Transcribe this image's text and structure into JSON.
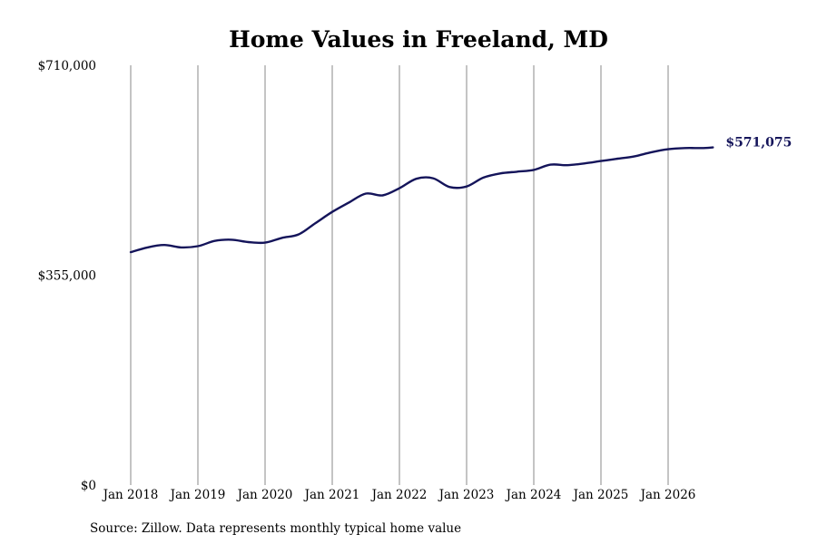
{
  "chart_data": {
    "type": "line",
    "title": "Home Values in Freeland, MD",
    "xlabel": "",
    "ylabel": "",
    "ylim": [
      0,
      710000
    ],
    "yticks": [
      {
        "value": 0,
        "label": "$0"
      },
      {
        "value": 355000,
        "label": "$355,000"
      },
      {
        "value": 710000,
        "label": "$710,000"
      }
    ],
    "xticks": [
      {
        "value": "2018-01",
        "label": "Jan 2018"
      },
      {
        "value": "2019-01",
        "label": "Jan 2019"
      },
      {
        "value": "2020-01",
        "label": "Jan 2020"
      },
      {
        "value": "2021-01",
        "label": "Jan 2021"
      },
      {
        "value": "2022-01",
        "label": "Jan 2022"
      },
      {
        "value": "2023-01",
        "label": "Jan 2023"
      },
      {
        "value": "2024-01",
        "label": "Jan 2024"
      },
      {
        "value": "2025-01",
        "label": "Jan 2025"
      },
      {
        "value": "2026-01",
        "label": "Jan 2026"
      }
    ],
    "xlim": [
      "2018-01",
      "2026-12"
    ],
    "vertical_grid": true,
    "horizontal_grid": false,
    "line_color": "#14145a",
    "series": [
      {
        "points": [
          [
            "2018-01",
            394000
          ],
          [
            "2018-04",
            402000
          ],
          [
            "2018-07",
            406000
          ],
          [
            "2018-10",
            402000
          ],
          [
            "2019-01",
            404000
          ],
          [
            "2019-04",
            413000
          ],
          [
            "2019-07",
            415000
          ],
          [
            "2019-10",
            411000
          ],
          [
            "2020-01",
            410000
          ],
          [
            "2020-04",
            418000
          ],
          [
            "2020-07",
            424000
          ],
          [
            "2020-10",
            443000
          ],
          [
            "2021-01",
            462000
          ],
          [
            "2021-04",
            478000
          ],
          [
            "2021-07",
            493000
          ],
          [
            "2021-10",
            490000
          ],
          [
            "2022-01",
            502000
          ],
          [
            "2022-04",
            518000
          ],
          [
            "2022-07",
            519000
          ],
          [
            "2022-10",
            504000
          ],
          [
            "2023-01",
            505000
          ],
          [
            "2023-04",
            520000
          ],
          [
            "2023-07",
            527000
          ],
          [
            "2023-10",
            530000
          ],
          [
            "2024-01",
            533000
          ],
          [
            "2024-04",
            542000
          ],
          [
            "2024-07",
            541000
          ],
          [
            "2024-10",
            544000
          ],
          [
            "2025-01",
            548000
          ],
          [
            "2025-04",
            552000
          ],
          [
            "2025-07",
            556000
          ],
          [
            "2025-10",
            563000
          ],
          [
            "2026-01",
            568000
          ],
          [
            "2026-04",
            570000
          ],
          [
            "2026-07",
            570000
          ],
          [
            "2026-09",
            571075
          ]
        ]
      }
    ],
    "end_label": "$571,075"
  },
  "footer": {
    "source": "Source: Zillow. Data represents monthly typical home value"
  }
}
